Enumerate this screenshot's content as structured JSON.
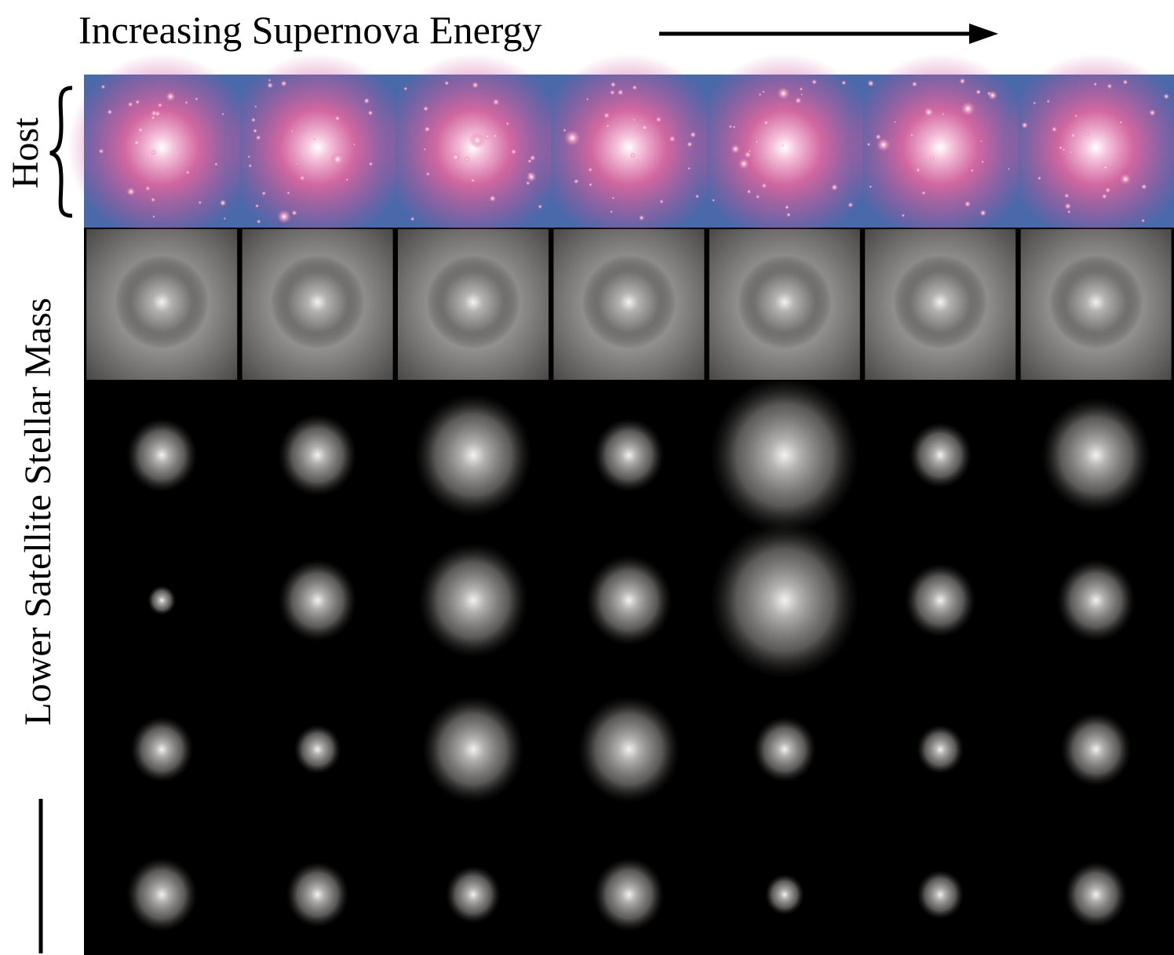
{
  "header": {
    "title": "Increasing Supernova Energy"
  },
  "row_labels": {
    "host": "Host",
    "satellites": "Lower Satellite Stellar Mass"
  }
}
